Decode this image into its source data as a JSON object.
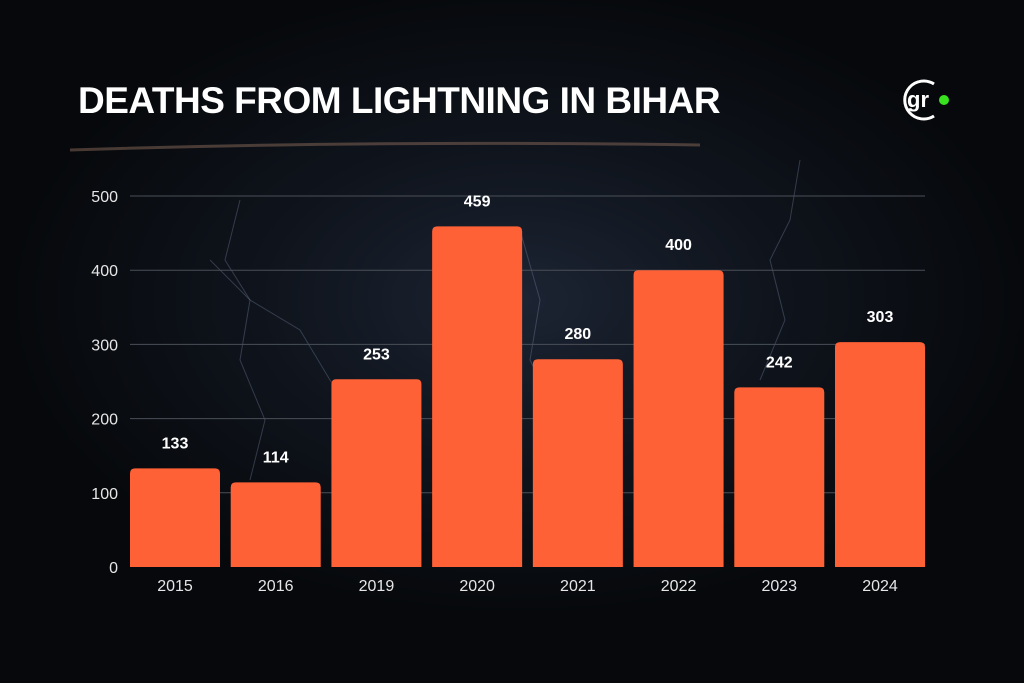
{
  "logo_text": "gr",
  "colors": {
    "bar": "#FF6136",
    "logo_dot": "#39E21E",
    "grid": "#4a4f57"
  },
  "chart_data": {
    "type": "bar",
    "title": "DEATHS FROM LIGHTNING IN BIHAR",
    "categories": [
      "2015",
      "2016",
      "2019",
      "2020",
      "2021",
      "2022",
      "2023",
      "2024"
    ],
    "values": [
      133,
      114,
      253,
      459,
      280,
      400,
      242,
      303
    ],
    "xlabel": "",
    "ylabel": "",
    "ylim": [
      0,
      500
    ],
    "yticks": [
      0,
      100,
      200,
      300,
      400,
      500
    ],
    "grid": true
  }
}
